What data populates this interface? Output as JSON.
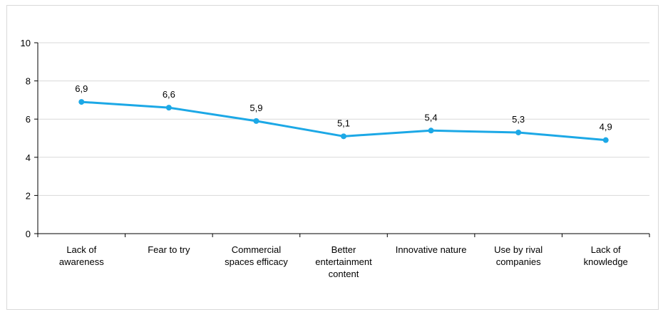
{
  "chart_data": {
    "type": "line",
    "title": "",
    "xlabel": "",
    "ylabel": "",
    "ylim": [
      0,
      10
    ],
    "yticks": [
      0,
      2,
      4,
      6,
      8,
      10
    ],
    "grid": "horizontal",
    "legend": "none",
    "categories": [
      [
        "Lack of",
        "awareness"
      ],
      [
        "Fear to try"
      ],
      [
        "Commercial",
        "spaces efficacy"
      ],
      [
        "Better",
        "entertainment",
        "content"
      ],
      [
        "Innovative nature"
      ],
      [
        "Use by rival",
        "companies"
      ],
      [
        "Lack of",
        "knowledge"
      ]
    ],
    "series": [
      {
        "values": [
          6.9,
          6.6,
          5.9,
          5.1,
          5.4,
          5.3,
          4.9
        ],
        "data_labels": [
          "6,9",
          "6,6",
          "5,9",
          "5,1",
          "5,4",
          "5,3",
          "4,9"
        ],
        "color": "#1ca8e6"
      }
    ],
    "colors": {
      "grid": "#d9d9d9",
      "axis": "#000000",
      "frame": "#d9d9d9"
    }
  }
}
